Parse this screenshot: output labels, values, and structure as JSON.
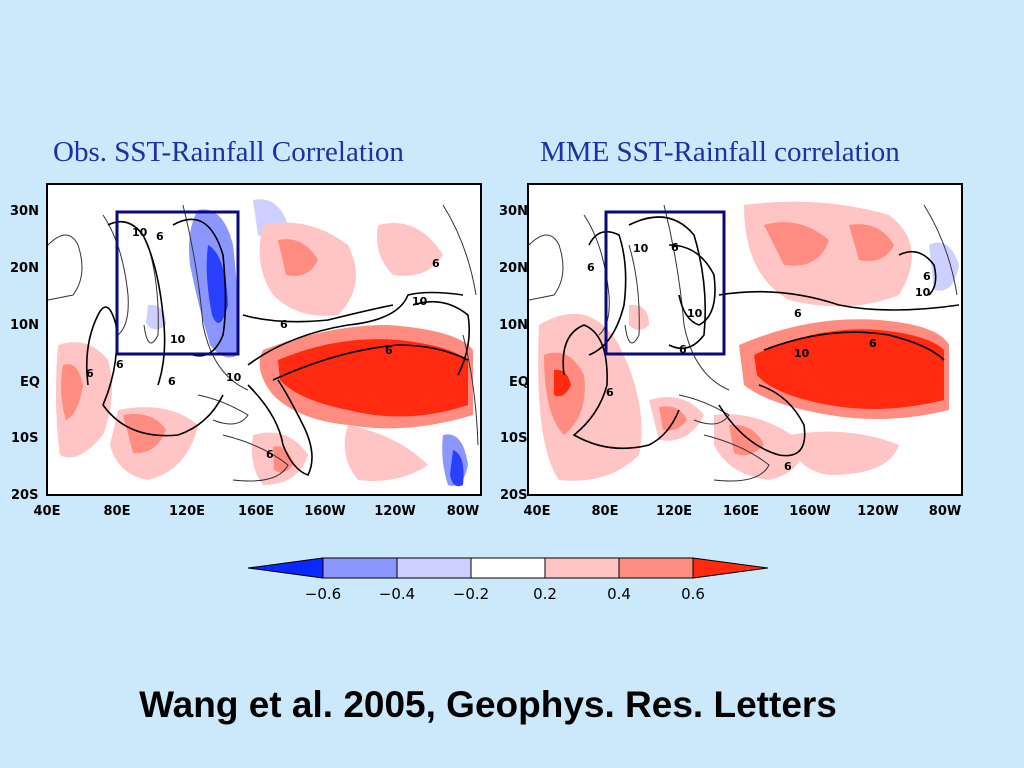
{
  "panels": [
    {
      "title": "Obs. SST-Rainfall Correlation",
      "contour_labels": [
        "10",
        "6",
        "6",
        "6",
        "10",
        "6",
        "6",
        "10",
        "6",
        "6",
        "10",
        "6"
      ]
    },
    {
      "title": "MME SST-Rainfall correlation",
      "contour_labels": [
        "10",
        "6",
        "6",
        "6",
        "10",
        "6",
        "6",
        "10",
        "6",
        "6",
        "10",
        "6"
      ]
    }
  ],
  "axes": {
    "lat_labels": [
      "30N",
      "20N",
      "10N",
      "EQ",
      "10S",
      "20S"
    ],
    "lon_labels": [
      "40E",
      "80E",
      "120E",
      "160E",
      "160W",
      "120W",
      "80W"
    ]
  },
  "colorbar": {
    "ticks": [
      "−0.6",
      "−0.4",
      "−0.2",
      "0.2",
      "0.4",
      "0.6"
    ],
    "colors": [
      "#0a28ff",
      "#8c96ff",
      "#cdd0ff",
      "#ffffff",
      "#ffc4c4",
      "#ff8c80",
      "#ff2a10"
    ]
  },
  "citation": "Wang et al. 2005, Geophys. Res. Letters"
}
